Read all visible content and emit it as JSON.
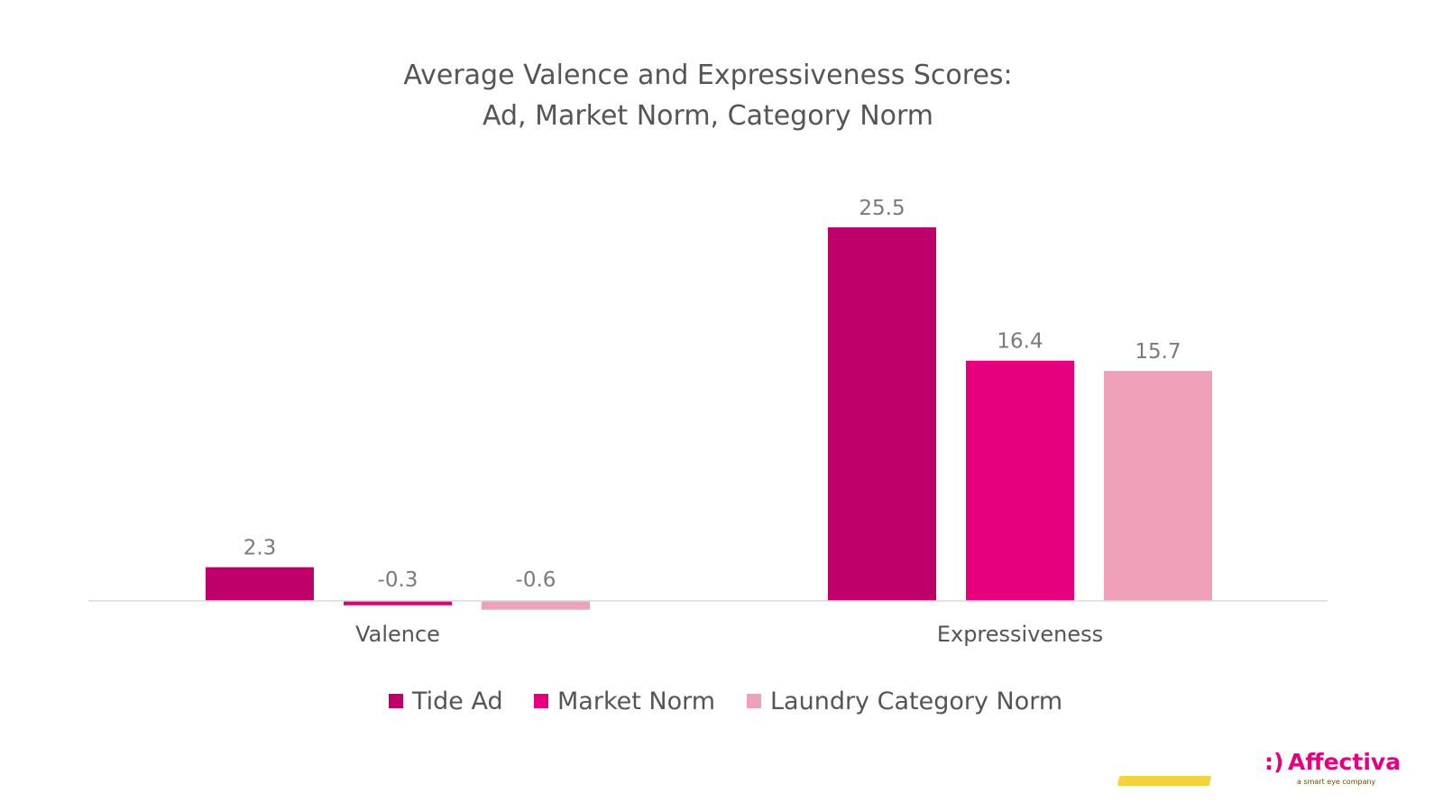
{
  "chart_data": {
    "type": "bar",
    "title_lines": [
      "Average Valence and Expressiveness Scores:",
      "Ad, Market Norm, Category Norm"
    ],
    "categories": [
      "Valence",
      "Expressiveness"
    ],
    "series": [
      {
        "name": "Tide Ad",
        "values": [
          2.3,
          25.5
        ],
        "labels": [
          "2.3",
          "25.5"
        ],
        "color": "#c0006a"
      },
      {
        "name": "Market Norm",
        "values": [
          -0.3,
          16.4
        ],
        "labels": [
          "-0.3",
          "16.4"
        ],
        "color": "#e6007e"
      },
      {
        "name": "Laundry Category Norm",
        "values": [
          -0.6,
          15.7
        ],
        "labels": [
          "-0.6",
          "15.7"
        ],
        "color": "#f0a1ba"
      }
    ],
    "xlabel": "",
    "ylabel": "",
    "ylim": [
      -1,
      28
    ],
    "grid": false,
    "legend": "bottom"
  },
  "logo": {
    "mark": ":)",
    "name": "Affectiva",
    "tagline": "a smart eye company",
    "color": "#e5007e",
    "tagline_bg": "#f5d33a"
  }
}
